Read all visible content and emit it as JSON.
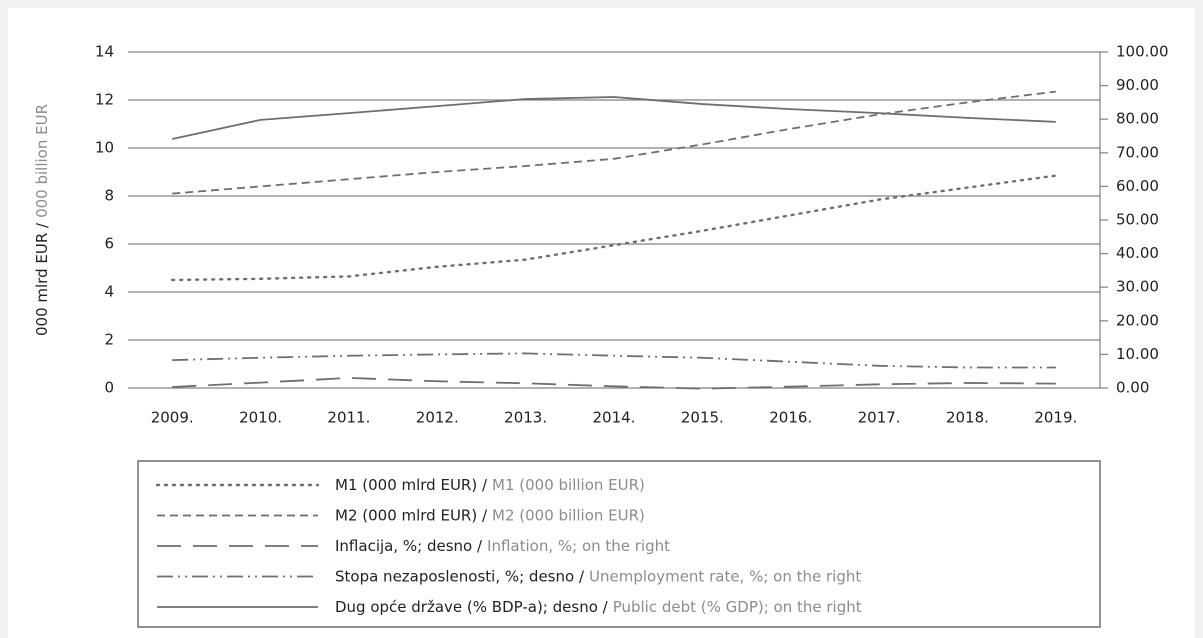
{
  "chart_data": {
    "type": "line",
    "y_label": "000 mlrd EUR /",
    "y_label_en": "000 billion EUR",
    "categories": [
      "2009.",
      "2010.",
      "2011.",
      "2012.",
      "2013.",
      "2014.",
      "2015.",
      "2016.",
      "2017.",
      "2018.",
      "2019."
    ],
    "ylim": [
      0,
      14
    ],
    "yticks": [
      0,
      2,
      4,
      6,
      8,
      10,
      12,
      14
    ],
    "y2lim": [
      0,
      100
    ],
    "y2ticks": [
      {
        "value": 0,
        "label": "0.00"
      },
      {
        "value": 10,
        "label": "10.00"
      },
      {
        "value": 20,
        "label": "20.00"
      },
      {
        "value": 30,
        "label": "30.00"
      },
      {
        "value": 40,
        "label": "40.00"
      },
      {
        "value": 50,
        "label": "50.00"
      },
      {
        "value": 60,
        "label": "60.00"
      },
      {
        "value": 70,
        "label": "70.00"
      },
      {
        "value": 80,
        "label": "80.00"
      },
      {
        "value": 90,
        "label": "90.00"
      },
      {
        "value": 100,
        "label": "100.00"
      }
    ],
    "grid": true,
    "series": [
      {
        "name": "M1 (000 mlrd EUR) /",
        "name_en": "M1 (000 billion EUR)",
        "color": "#6d6e71",
        "style": "dotted",
        "values": [
          4.5,
          4.55,
          4.65,
          5.05,
          5.35,
          5.95,
          6.55,
          7.2,
          7.85,
          8.35,
          8.85
        ]
      },
      {
        "name": "M2 (000 mlrd EUR) /",
        "name_en": "M2 (000 billion EUR)",
        "color": "#6d6e71",
        "style": "dashed",
        "values": [
          8.1,
          8.4,
          8.7,
          9.0,
          9.25,
          9.55,
          10.15,
          10.8,
          11.4,
          11.9,
          12.35
        ]
      },
      {
        "name": "Inflacija, %; desno /",
        "name_en": "Inflation, %; on the right",
        "color": "#6d6e71",
        "style": "longdash",
        "axis": "y2",
        "values": [
          0.3,
          1.6,
          3.0,
          2.0,
          1.4,
          0.5,
          -0.2,
          0.4,
          1.1,
          1.5,
          1.3
        ]
      },
      {
        "name": "Stopa nezaposlenosti, %; desno /",
        "name_en": "Unemployment rate, %; on the right",
        "color": "#6d6e71",
        "style": "dashdotdot",
        "axis": "y2",
        "values": [
          8.3,
          9.0,
          9.6,
          10.0,
          10.3,
          9.6,
          9.0,
          7.8,
          6.6,
          6.1,
          6.1
        ]
      },
      {
        "name": "Dug opće države (% BDP-a); desno /",
        "name_en": "Public debt (% GDP); on the right",
        "color": "#6d6e71",
        "style": "solid",
        "axis": "y2",
        "values": [
          74.1,
          79.8,
          81.8,
          83.9,
          86.0,
          86.6,
          84.5,
          83.0,
          81.8,
          80.4,
          79.2
        ]
      }
    ]
  }
}
